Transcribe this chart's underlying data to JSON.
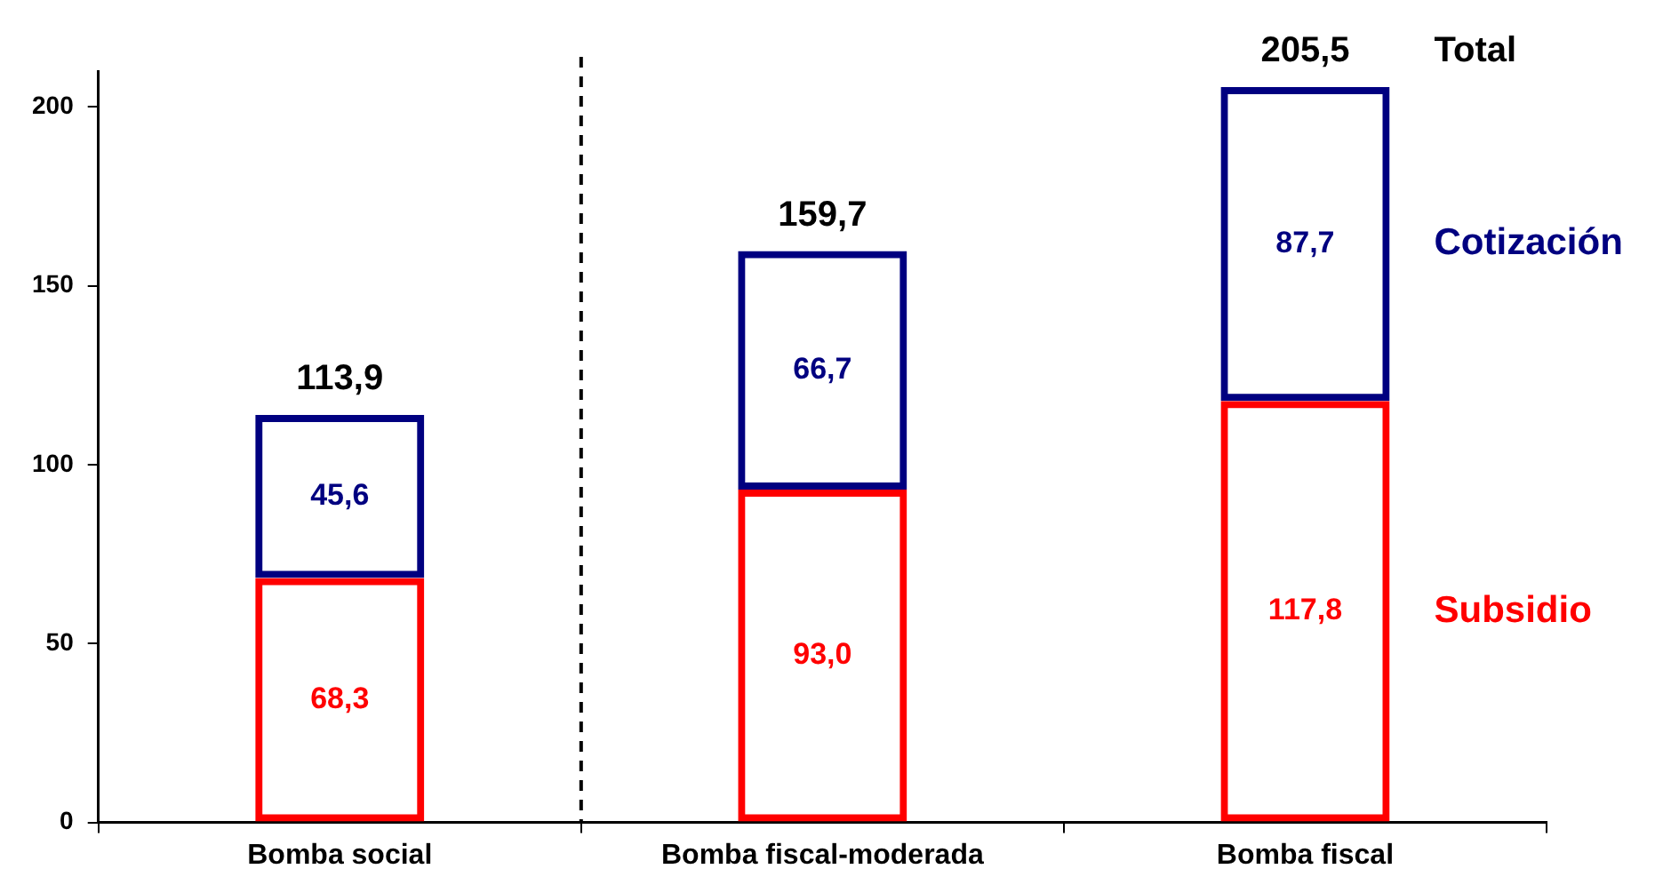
{
  "chart_data": {
    "type": "bar",
    "stacked": true,
    "categories": [
      "Bomba social",
      "Bomba fiscal-moderada",
      "Bomba fiscal"
    ],
    "series": [
      {
        "name": "Subsidio",
        "color": "#ff0000",
        "values": [
          68.3,
          93.0,
          117.8
        ],
        "value_labels": [
          "68,3",
          "93,0",
          "117,8"
        ]
      },
      {
        "name": "Cotización",
        "color": "#000080",
        "values": [
          45.6,
          66.7,
          87.7
        ],
        "value_labels": [
          "45,6",
          "66,7",
          "87,7"
        ]
      }
    ],
    "totals": [
      "113,9",
      "159,7",
      "205,5"
    ],
    "annotations": [
      "Total"
    ],
    "ylim": [
      0,
      210
    ],
    "yticks": [
      0,
      50,
      100,
      150,
      200
    ],
    "grid": false,
    "legend": "right"
  }
}
